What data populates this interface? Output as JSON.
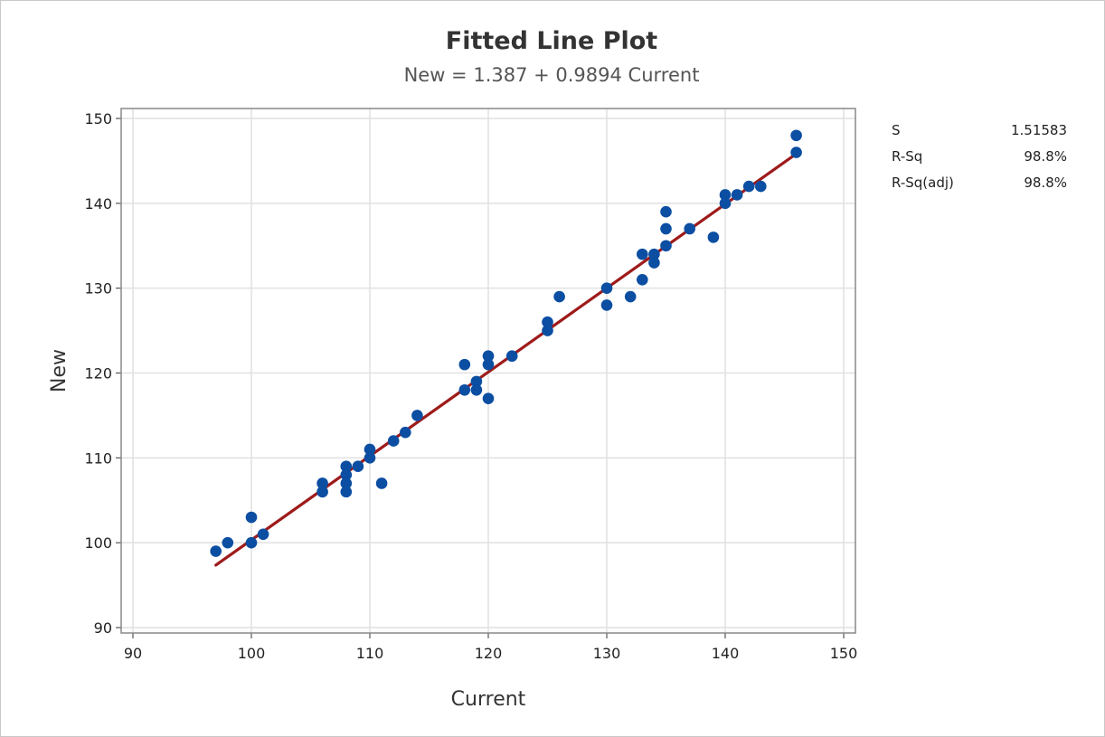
{
  "chart_data": {
    "type": "scatter",
    "title": "Fitted Line Plot",
    "subtitle": "New = 1.387 + 0.9894 Current",
    "xlabel": "Current",
    "ylabel": "New",
    "xlim": [
      90,
      150
    ],
    "ylim": [
      90,
      150
    ],
    "xticks": [
      90,
      100,
      110,
      120,
      130,
      140,
      150
    ],
    "yticks": [
      90,
      100,
      110,
      120,
      130,
      140,
      150
    ],
    "grid": true,
    "colors": {
      "points": "#0b4ea2",
      "fit_line": "#9e1b1b",
      "grid": "#e1e1e1",
      "plot_border": "#888888"
    },
    "fit": {
      "intercept": 1.387,
      "slope": 0.9894,
      "x_range": [
        97,
        146
      ]
    },
    "stats": [
      {
        "label": "S",
        "value": "1.51583"
      },
      {
        "label": "R-Sq",
        "value": "98.8%"
      },
      {
        "label": "R-Sq(adj)",
        "value": "98.8%"
      }
    ],
    "points": [
      [
        97,
        99
      ],
      [
        98,
        100
      ],
      [
        100,
        103
      ],
      [
        100,
        100
      ],
      [
        101,
        101
      ],
      [
        106,
        107
      ],
      [
        106,
        106
      ],
      [
        108,
        109
      ],
      [
        108,
        108
      ],
      [
        108,
        107
      ],
      [
        108,
        106
      ],
      [
        109,
        109
      ],
      [
        110,
        111
      ],
      [
        110,
        110
      ],
      [
        111,
        107
      ],
      [
        112,
        112
      ],
      [
        113,
        113
      ],
      [
        114,
        115
      ],
      [
        118,
        121
      ],
      [
        118,
        118
      ],
      [
        119,
        119
      ],
      [
        119,
        118
      ],
      [
        120,
        122
      ],
      [
        120,
        121
      ],
      [
        120,
        117
      ],
      [
        122,
        122
      ],
      [
        125,
        126
      ],
      [
        125,
        125
      ],
      [
        126,
        129
      ],
      [
        130,
        130
      ],
      [
        130,
        128
      ],
      [
        132,
        129
      ],
      [
        133,
        134
      ],
      [
        133,
        131
      ],
      [
        134,
        134
      ],
      [
        134,
        133
      ],
      [
        135,
        139
      ],
      [
        135,
        137
      ],
      [
        135,
        135
      ],
      [
        137,
        137
      ],
      [
        139,
        136
      ],
      [
        140,
        141
      ],
      [
        140,
        140
      ],
      [
        141,
        141
      ],
      [
        142,
        142
      ],
      [
        143,
        142
      ],
      [
        146,
        148
      ],
      [
        146,
        146
      ]
    ]
  }
}
